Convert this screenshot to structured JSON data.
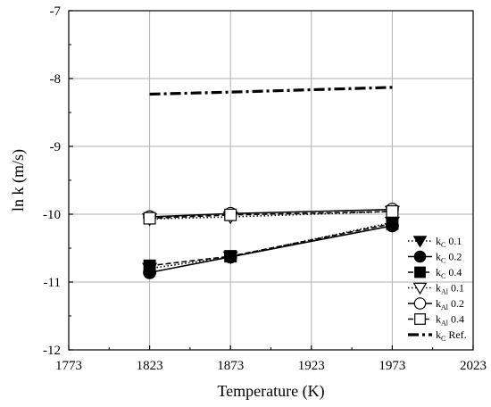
{
  "chart_data": {
    "type": "line",
    "title": "",
    "xlabel": "Temperature (K)",
    "ylabel": "ln k (m/s)",
    "xlim": [
      1773,
      2023
    ],
    "ylim": [
      -12,
      -7
    ],
    "xticks": [
      1773,
      1823,
      1873,
      1923,
      1973,
      2023
    ],
    "yticks": [
      -12,
      -11,
      -10,
      -9,
      -8,
      -7
    ],
    "grid": "major",
    "legend_position": "bottom-right",
    "series": [
      {
        "name": "kC 0.1",
        "legend": {
          "main": "k",
          "sub": "C",
          "tail": " 0.1"
        },
        "marker": "triangle-down",
        "filled": true,
        "dash": "dot",
        "x": [
          1823,
          1873,
          1973
        ],
        "y": [
          -10.8,
          -10.63,
          -10.12
        ]
      },
      {
        "name": "kC 0.2",
        "legend": {
          "main": "k",
          "sub": "C",
          "tail": " 0.2"
        },
        "marker": "circle",
        "filled": true,
        "dash": "solid",
        "x": [
          1823,
          1873,
          1973
        ],
        "y": [
          -10.86,
          -10.63,
          -10.17
        ]
      },
      {
        "name": "kC 0.4",
        "legend": {
          "main": "k",
          "sub": "C",
          "tail": " 0.4"
        },
        "marker": "square",
        "filled": true,
        "dash": "dash",
        "x": [
          1823,
          1873,
          1973
        ],
        "y": [
          -10.76,
          -10.62,
          -10.14
        ]
      },
      {
        "name": "kAl 0.1",
        "legend": {
          "main": "k",
          "sub": "Al",
          "tail": " 0.1"
        },
        "marker": "triangle-down",
        "filled": false,
        "dash": "dot",
        "x": [
          1823,
          1873,
          1973
        ],
        "y": [
          -10.07,
          -10.04,
          -9.96
        ]
      },
      {
        "name": "kAl 0.2",
        "legend": {
          "main": "k",
          "sub": "Al",
          "tail": " 0.2"
        },
        "marker": "circle",
        "filled": false,
        "dash": "solid",
        "x": [
          1823,
          1873,
          1973
        ],
        "y": [
          -10.04,
          -9.99,
          -9.93
        ]
      },
      {
        "name": "kAl 0.4",
        "legend": {
          "main": "k",
          "sub": "Al",
          "tail": " 0.4"
        },
        "marker": "square",
        "filled": false,
        "dash": "dash",
        "x": [
          1823,
          1873,
          1973
        ],
        "y": [
          -10.06,
          -10.01,
          -9.96
        ]
      },
      {
        "name": "kC Ref.",
        "legend": {
          "main": "k",
          "sub": "C",
          "tail": " Ref."
        },
        "marker": "none",
        "filled": false,
        "dash": "dashdot",
        "x": [
          1823,
          1873,
          1973
        ],
        "y": [
          -8.23,
          -8.2,
          -8.13
        ]
      }
    ]
  }
}
